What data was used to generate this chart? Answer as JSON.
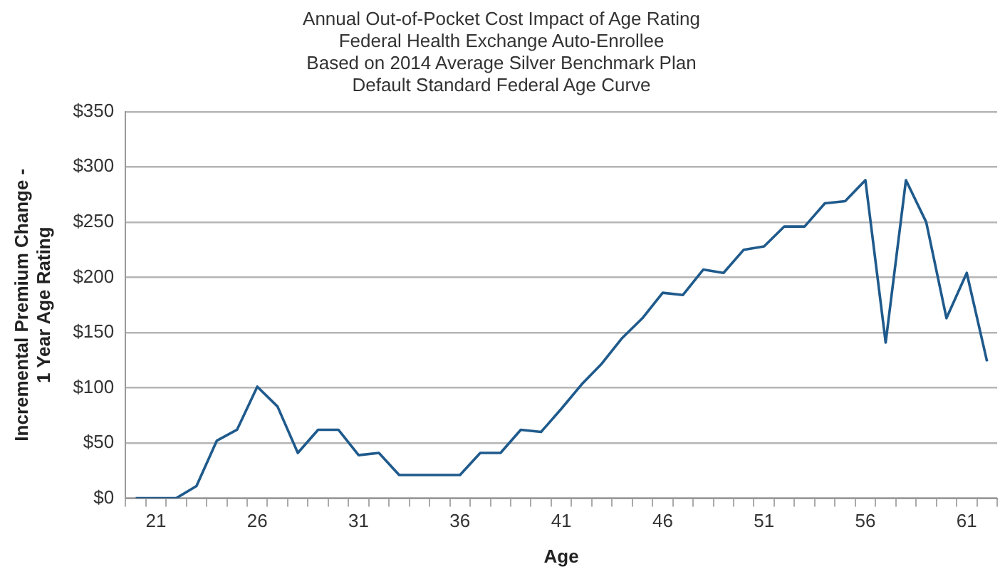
{
  "chart_data": {
    "type": "line",
    "title": "Annual Out-of-Pocket Cost Impact of Age Rating\nFederal Health Exchange Auto-Enrollee\nBased on 2014 Average Silver Benchmark Plan\nDefault Standard Federal Age Curve",
    "xlabel": "Age",
    "ylabel": "Incremental Premium Change -\n1 Year Age Rating",
    "categories": [
      null,
      "21",
      null,
      null,
      null,
      null,
      "26",
      null,
      null,
      null,
      null,
      "31",
      null,
      null,
      null,
      null,
      "36",
      null,
      null,
      null,
      null,
      "41",
      null,
      null,
      null,
      null,
      "46",
      null,
      null,
      null,
      null,
      "51",
      null,
      null,
      null,
      null,
      "56",
      null,
      null,
      null,
      null,
      "61",
      null
    ],
    "series": [
      {
        "color": "#1f5a8c",
        "values": [
          0,
          0,
          0,
          11,
          52,
          62,
          101,
          83,
          41,
          62,
          62,
          39,
          41,
          21,
          21,
          21,
          21,
          41,
          41,
          62,
          60,
          81,
          103,
          122,
          145,
          163,
          186,
          184,
          207,
          204,
          225,
          228,
          246,
          246,
          267,
          269,
          288,
          141,
          288,
          250,
          163,
          204,
          124
        ]
      }
    ],
    "ylim": [
      0,
      350
    ],
    "yticks": [
      {
        "value": 0,
        "label": "$0"
      },
      {
        "value": 50,
        "label": "$50"
      },
      {
        "value": 100,
        "label": "$100"
      },
      {
        "value": 150,
        "label": "$150"
      },
      {
        "value": 200,
        "label": "$200"
      },
      {
        "value": 250,
        "label": "$250"
      },
      {
        "value": 300,
        "label": "$300"
      },
      {
        "value": 350,
        "label": "$350"
      }
    ],
    "grid": "y",
    "legend": false,
    "marker": "none",
    "line_style": "solid"
  }
}
